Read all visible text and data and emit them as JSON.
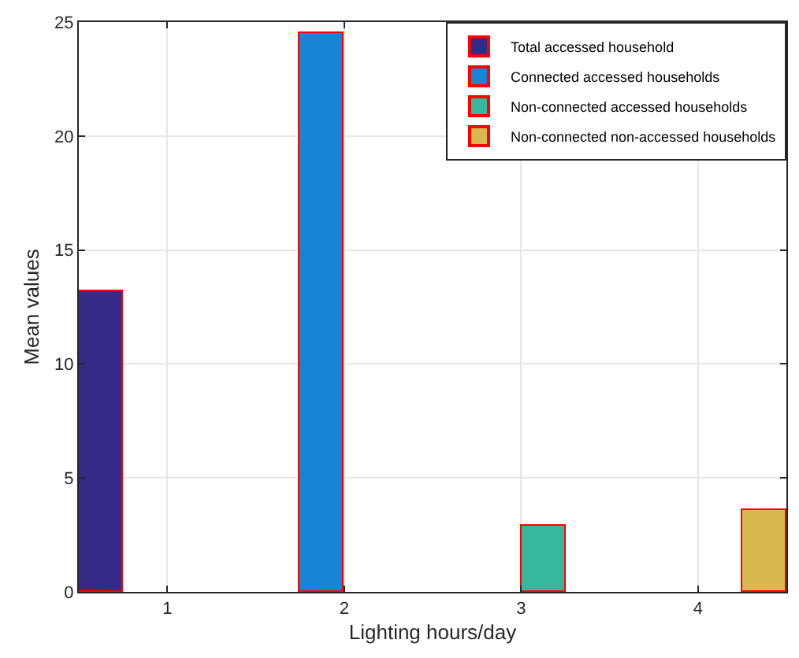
{
  "chart_data": {
    "type": "bar",
    "xlabel": "Lighting hours/day",
    "ylabel": "Mean values",
    "x": [
      1,
      2,
      3,
      4
    ],
    "xlim": [
      0.5,
      4.5
    ],
    "xticks": [
      1,
      2,
      3,
      4
    ],
    "ylim": [
      0,
      25
    ],
    "yticks": [
      0,
      5,
      10,
      15,
      20,
      25
    ],
    "grid": true,
    "legend": "top right",
    "series": [
      {
        "name": "Total accessed household",
        "color": "#352a87",
        "values": [
          13.2,
          null,
          null,
          null
        ]
      },
      {
        "name": "Connected accessed households",
        "color": "#1784d6",
        "values": [
          null,
          24.5,
          null,
          null
        ]
      },
      {
        "name": "Non-connected accessed households",
        "color": "#37b89d",
        "values": [
          null,
          null,
          2.9,
          null
        ]
      },
      {
        "name": "Non-connected non-accessed households",
        "color": "#d7b94f",
        "values": [
          null,
          null,
          null,
          3.6
        ]
      }
    ]
  }
}
